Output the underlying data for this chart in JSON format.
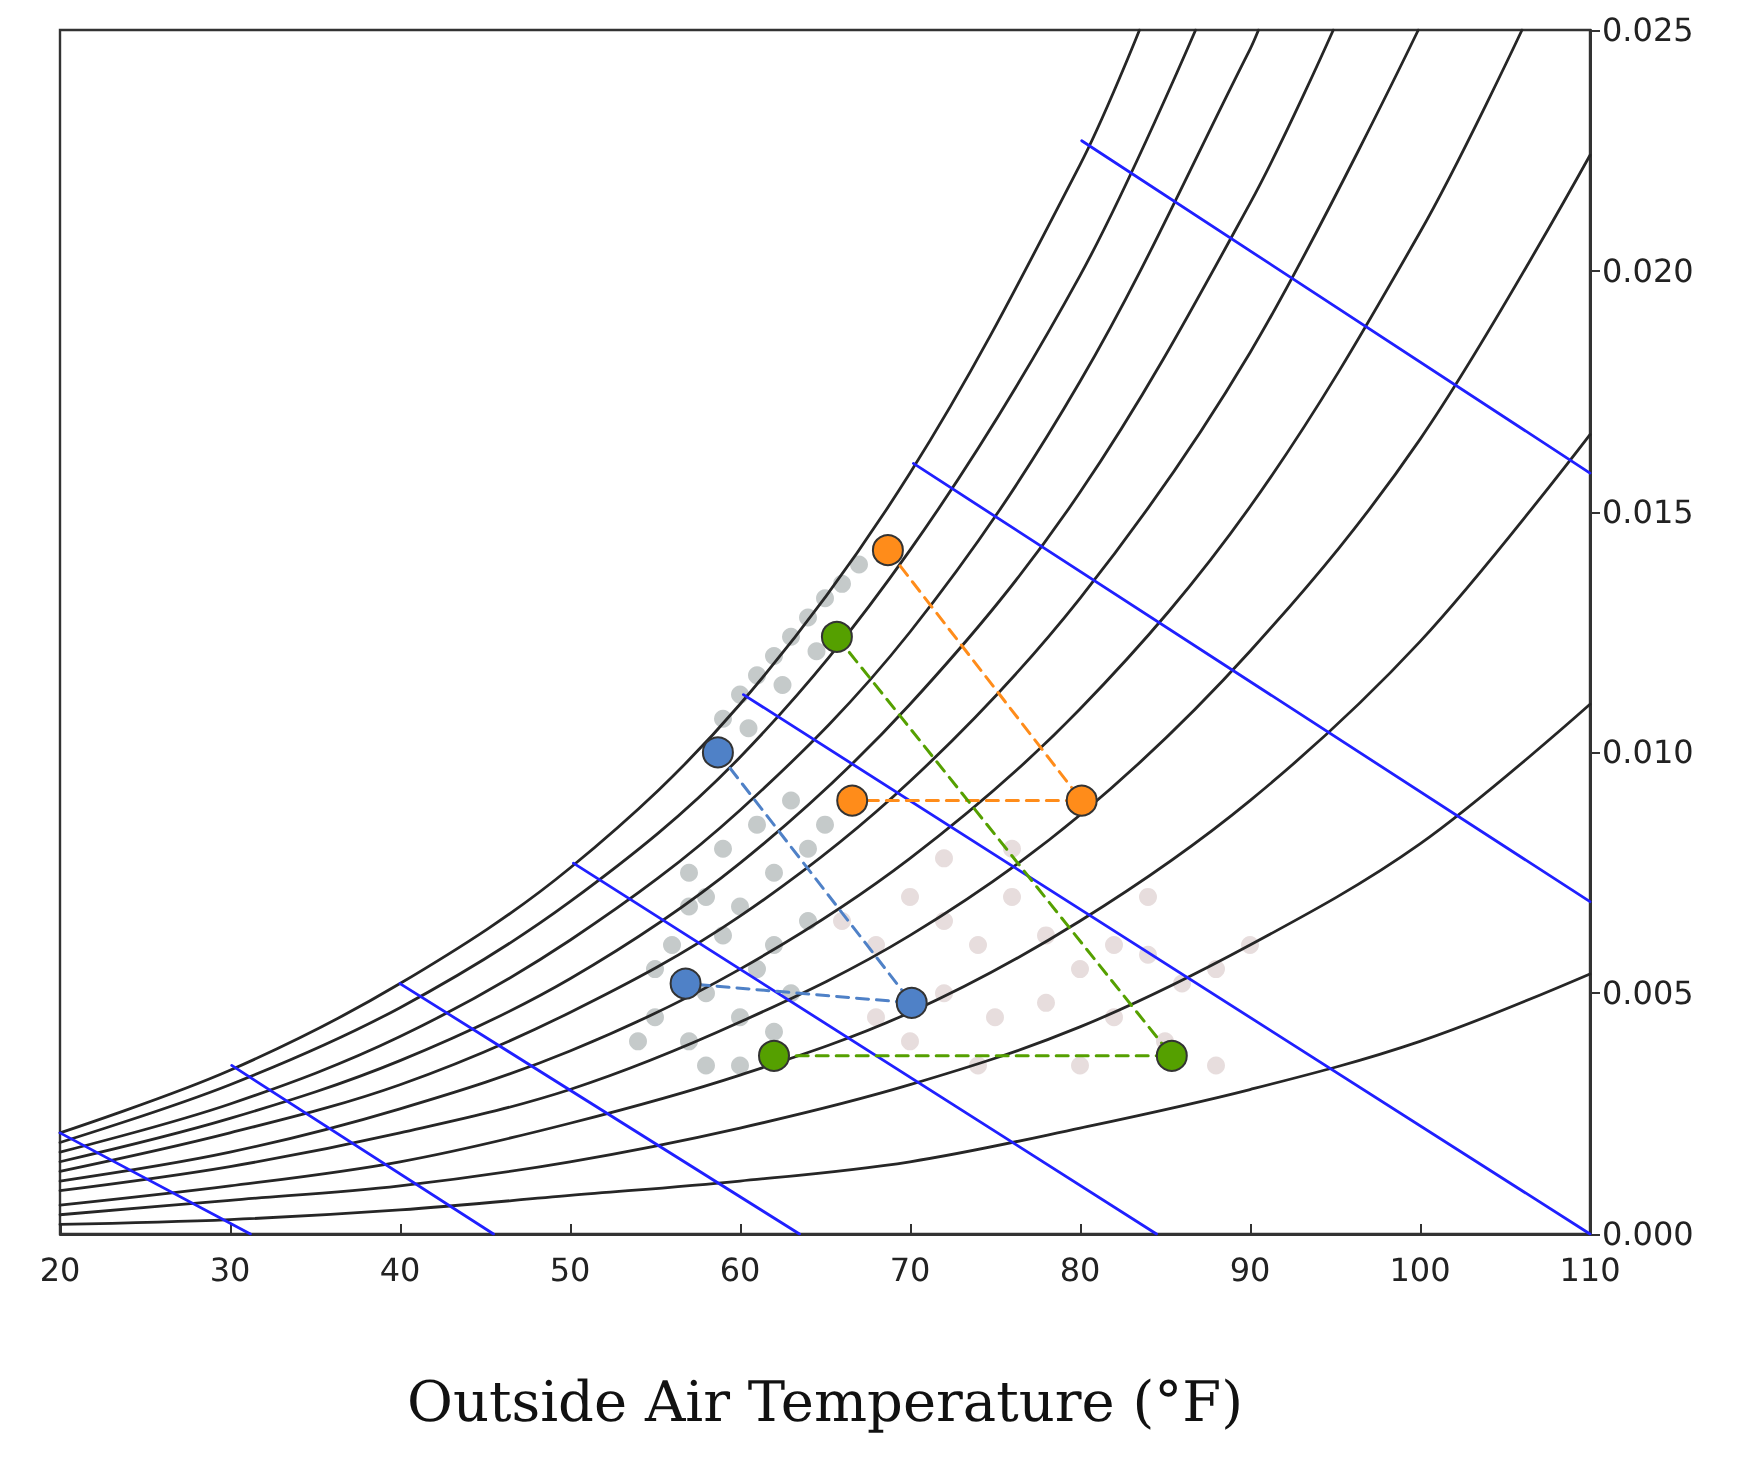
{
  "chart_data": {
    "type": "line",
    "xlabel": "Outside Air Temperature (°F)",
    "xlim": [
      20,
      110
    ],
    "xticks": [
      20,
      30,
      40,
      50,
      60,
      70,
      80,
      90,
      100,
      110
    ],
    "ylim": [
      0,
      0.025
    ],
    "yticks": [
      {
        "value": 0,
        "label": "0.000"
      },
      {
        "value": 0.005,
        "label": "0.005"
      },
      {
        "value": 0.01,
        "label": "0.010"
      },
      {
        "value": 0.015,
        "label": "0.015"
      },
      {
        "value": 0.02,
        "label": "0.020"
      },
      {
        "value": 0.025,
        "label": "0.025"
      }
    ],
    "grid": false,
    "series": [
      {
        "color": "#262626",
        "marker": "none",
        "line_style": "solid",
        "x": [
          20,
          30,
          40,
          50,
          60,
          70,
          80,
          90,
          100,
          110
        ],
        "values": [
          0.0002,
          0.0003,
          0.0005,
          0.0008,
          0.0011,
          0.0015,
          0.0022,
          0.003,
          0.004,
          0.0054
        ]
      },
      {
        "color": "#262626",
        "marker": "none",
        "line_style": "solid",
        "x": [
          20,
          30,
          40,
          50,
          60,
          70,
          80,
          90,
          100,
          110
        ],
        "values": [
          0.0004,
          0.0007,
          0.001,
          0.0015,
          0.0022,
          0.0031,
          0.0043,
          0.006,
          0.0081,
          0.011
        ]
      },
      {
        "color": "#262626",
        "marker": "none",
        "line_style": "solid",
        "x": [
          20,
          30,
          40,
          50,
          60,
          70,
          80,
          90,
          100,
          110
        ],
        "values": [
          0.0006,
          0.001,
          0.0015,
          0.0023,
          0.0033,
          0.0046,
          0.0065,
          0.009,
          0.0123,
          0.0166
        ]
      },
      {
        "color": "#262626",
        "marker": "none",
        "line_style": "solid",
        "x": [
          20,
          30,
          40,
          50,
          60,
          70,
          80,
          90,
          100,
          110
        ],
        "values": [
          0.0009,
          0.0014,
          0.0021,
          0.003,
          0.0044,
          0.0062,
          0.0087,
          0.0121,
          0.0165,
          0.0224
        ]
      },
      {
        "color": "#262626",
        "marker": "none",
        "line_style": "solid",
        "x": [
          20,
          30,
          40,
          50,
          60,
          70,
          80,
          90,
          100,
          106
        ],
        "values": [
          0.0011,
          0.0017,
          0.0026,
          0.0038,
          0.0055,
          0.0078,
          0.0109,
          0.0151,
          0.0208,
          0.025
        ]
      },
      {
        "color": "#262626",
        "marker": "none",
        "line_style": "solid",
        "x": [
          20,
          30,
          40,
          50,
          60,
          70,
          80,
          90,
          99.9
        ],
        "values": [
          0.0013,
          0.0021,
          0.0031,
          0.0046,
          0.0066,
          0.0094,
          0.0132,
          0.0183,
          0.025
        ]
      },
      {
        "color": "#262626",
        "marker": "none",
        "line_style": "solid",
        "x": [
          20,
          30,
          40,
          50,
          60,
          70,
          80,
          90,
          94.9
        ],
        "values": [
          0.0015,
          0.0024,
          0.0036,
          0.0053,
          0.0077,
          0.011,
          0.0154,
          0.0214,
          0.025
        ]
      },
      {
        "color": "#262626",
        "marker": "none",
        "line_style": "solid",
        "x": [
          20,
          30,
          40,
          50,
          60,
          70,
          80,
          90,
          90.5
        ],
        "values": [
          0.0017,
          0.0027,
          0.0041,
          0.0061,
          0.0088,
          0.0125,
          0.0177,
          0.0246,
          0.025
        ]
      },
      {
        "color": "#262626",
        "marker": "none",
        "line_style": "solid",
        "x": [
          20,
          30,
          40,
          50,
          60,
          70,
          80,
          86.8
        ],
        "values": [
          0.0019,
          0.0031,
          0.0047,
          0.0069,
          0.0099,
          0.0142,
          0.0199,
          0.025
        ]
      },
      {
        "color": "#262626",
        "marker": "none",
        "line_style": "solid",
        "x": [
          20,
          30,
          40,
          50,
          60,
          70,
          80,
          83.5
        ],
        "values": [
          0.0021,
          0.0034,
          0.0052,
          0.0076,
          0.011,
          0.0158,
          0.0222,
          0.025
        ]
      },
      {
        "color": "#2020ff",
        "marker": "none",
        "line_style": "solid",
        "x": [
          80.1,
          110
        ],
        "values": [
          0.0227,
          0.0158
        ]
      },
      {
        "color": "#2020ff",
        "marker": "none",
        "line_style": "solid",
        "x": [
          70.2,
          110
        ],
        "values": [
          0.016,
          0.0069
        ]
      },
      {
        "color": "#2020ff",
        "marker": "none",
        "line_style": "solid",
        "x": [
          60.2,
          110
        ],
        "values": [
          0.0112,
          0
        ]
      },
      {
        "color": "#2020ff",
        "marker": "none",
        "line_style": "solid",
        "x": [
          50.2,
          84.5
        ],
        "values": [
          0.0077,
          0
        ]
      },
      {
        "color": "#2020ff",
        "marker": "none",
        "line_style": "solid",
        "x": [
          40.0,
          63.5
        ],
        "values": [
          0.0052,
          0
        ]
      },
      {
        "color": "#2020ff",
        "marker": "none",
        "line_style": "solid",
        "x": [
          30.1,
          45.5
        ],
        "values": [
          0.0035,
          0
        ]
      },
      {
        "color": "#2020ff",
        "marker": "none",
        "line_style": "solid",
        "x": [
          20,
          31.2
        ],
        "values": [
          0.0021,
          0
        ]
      },
      {
        "type": "scatter",
        "color": "#7f8a8a",
        "marker": "circle",
        "x": [
          59,
          60,
          61,
          62,
          63,
          64,
          65,
          66,
          67,
          60.5,
          62.5,
          64.5,
          55,
          56,
          57,
          58,
          58,
          59,
          59,
          60,
          60,
          61,
          61,
          62,
          62,
          63,
          63,
          64,
          65,
          55,
          57,
          58,
          60,
          62,
          64,
          54,
          57
        ],
        "values": [
          0.0107,
          0.0112,
          0.0116,
          0.012,
          0.0124,
          0.0128,
          0.0132,
          0.0135,
          0.0139,
          0.0105,
          0.0114,
          0.0121,
          0.0045,
          0.006,
          0.004,
          0.007,
          0.005,
          0.0062,
          0.008,
          0.0045,
          0.0068,
          0.0055,
          0.0085,
          0.0075,
          0.006,
          0.009,
          0.005,
          0.008,
          0.0085,
          0.0055,
          0.0068,
          0.0035,
          0.0035,
          0.0042,
          0.0065,
          0.004,
          0.0075
        ]
      },
      {
        "type": "scatter",
        "color": "#c9b4b4",
        "marker": "circle",
        "x": [
          66,
          68,
          70,
          72,
          74,
          76,
          78,
          80,
          82,
          84,
          86,
          88,
          90,
          72,
          75,
          78,
          82,
          85,
          88,
          70,
          74,
          80,
          76,
          72,
          84,
          68
        ],
        "values": [
          0.0065,
          0.006,
          0.007,
          0.0065,
          0.006,
          0.007,
          0.0062,
          0.0055,
          0.006,
          0.0058,
          0.0052,
          0.0055,
          0.006,
          0.005,
          0.0045,
          0.0048,
          0.0045,
          0.004,
          0.0035,
          0.004,
          0.0035,
          0.0035,
          0.008,
          0.0078,
          0.007,
          0.0045
        ]
      },
      {
        "color": "#4f81c7",
        "marker": "circle",
        "line_style": "dashed",
        "x": [
          58.7,
          70.1,
          56.8
        ],
        "values": [
          0.01,
          0.0048,
          0.0052
        ]
      },
      {
        "color": "#ff8c1a",
        "marker": "circle",
        "line_style": "dashed",
        "x": [
          68.7,
          80.1,
          66.6
        ],
        "values": [
          0.0142,
          0.009,
          0.009
        ]
      },
      {
        "color": "#55a000",
        "marker": "circle",
        "line_style": "dashed",
        "x": [
          65.7,
          85.4,
          62.0
        ],
        "values": [
          0.0124,
          0.0037,
          0.0037
        ]
      }
    ]
  }
}
